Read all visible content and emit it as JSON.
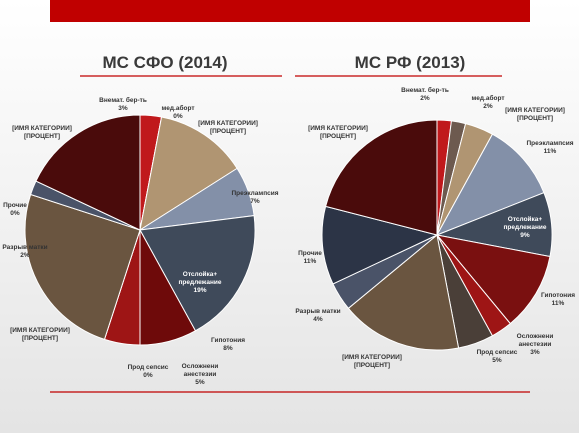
{
  "chart_data": [
    {
      "type": "pie",
      "title": "МС СФО (2014)",
      "categories": [
        "Внемат. бер-ть",
        "мед.аборт",
        "[ИМЯ КАТЕГОРИИ]",
        "Преэклампсия",
        "Отслойка+ предлежание",
        "Гипотония",
        "Осложнени анестезии",
        "Прод сепсис",
        "[ИМЯ КАТЕГОРИИ]",
        "Разрыв матки",
        "Прочие",
        "[ИМЯ КАТЕГОРИИ]"
      ],
      "values": [
        3,
        0,
        13,
        7,
        19,
        8,
        5,
        0,
        25,
        2,
        0,
        18
      ],
      "value_labels": [
        "3%",
        "0%",
        "[ПРОЦЕНТ]",
        "7%",
        "19%",
        "8%",
        "5%",
        "0%",
        "[ПРОЦЕНТ]",
        "2%",
        "0%",
        "[ПРОЦЕНТ]"
      ],
      "colors": [
        "#c0191c",
        "#6d5a4f",
        "#b09572",
        "#8390a8",
        "#3f4a5a",
        "#6e0a0a",
        "#9e1515",
        "#4a3f38",
        "#6a5540",
        "#4a5368",
        "#2c3446",
        "#4a0b0b"
      ]
    },
    {
      "type": "pie",
      "title": "МС РФ (2013)",
      "categories": [
        "Внемат. бер-ть",
        "мед.аборт",
        "[ИМЯ КАТЕГОРИИ]",
        "Преэклампсия",
        "Отслойка+ предлежание",
        "Гипотония",
        "Осложнени анестезии",
        "Прод сепсис",
        "[ИМЯ КАТЕГОРИИ]",
        "Разрыв матки",
        "Прочие",
        "[ИМЯ КАТЕГОРИИ]"
      ],
      "values": [
        2,
        2,
        4,
        11,
        9,
        11,
        3,
        5,
        17,
        4,
        11,
        21
      ],
      "value_labels": [
        "2%",
        "2%",
        "[ПРОЦЕНТ]",
        "11%",
        "9%",
        "11%",
        "3%",
        "5%",
        "[ПРОЦЕНТ]",
        "4%",
        "11%",
        "[ПРОЦЕНТ]"
      ],
      "colors": [
        "#c0191c",
        "#6d5a4f",
        "#b09572",
        "#8390a8",
        "#3f4a5a",
        "#7a1010",
        "#9e1515",
        "#4a3f38",
        "#6a5540",
        "#4a5368",
        "#2c3446",
        "#4a0b0b"
      ]
    }
  ]
}
